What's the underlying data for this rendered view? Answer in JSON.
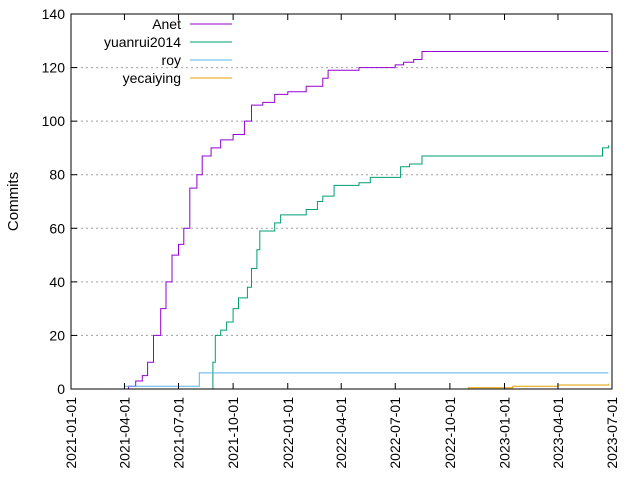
{
  "chart_data": {
    "type": "line",
    "xlabel": "",
    "ylabel": "Commits",
    "ylim": [
      0,
      140
    ],
    "xlim": [
      "2021-01-01",
      "2023-07-01"
    ],
    "y_ticks": [
      0,
      20,
      40,
      60,
      80,
      100,
      120,
      140
    ],
    "x_ticks": [
      "2021-01-01",
      "2021-04-01",
      "2021-07-01",
      "2021-10-01",
      "2022-01-01",
      "2022-04-01",
      "2022-07-01",
      "2022-10-01",
      "2023-01-01",
      "2023-04-01",
      "2023-07-01"
    ],
    "grid": "horizontal dotted",
    "legend_position": "top-left",
    "step": true,
    "series": [
      {
        "name": "Anet",
        "color": "#9400d3",
        "points": [
          [
            "2021-04-01",
            0
          ],
          [
            "2021-04-08",
            1
          ],
          [
            "2021-04-20",
            3
          ],
          [
            "2021-05-01",
            5
          ],
          [
            "2021-05-10",
            10
          ],
          [
            "2021-05-20",
            20
          ],
          [
            "2021-06-01",
            30
          ],
          [
            "2021-06-10",
            40
          ],
          [
            "2021-06-20",
            50
          ],
          [
            "2021-07-01",
            54
          ],
          [
            "2021-07-10",
            60
          ],
          [
            "2021-07-20",
            75
          ],
          [
            "2021-08-01",
            80
          ],
          [
            "2021-08-10",
            87
          ],
          [
            "2021-08-25",
            90
          ],
          [
            "2021-09-10",
            93
          ],
          [
            "2021-10-01",
            95
          ],
          [
            "2021-10-20",
            100
          ],
          [
            "2021-11-01",
            106
          ],
          [
            "2021-11-20",
            107
          ],
          [
            "2021-12-10",
            110
          ],
          [
            "2022-01-01",
            111
          ],
          [
            "2022-02-01",
            113
          ],
          [
            "2022-03-01",
            116
          ],
          [
            "2022-03-10",
            119
          ],
          [
            "2022-04-01",
            119
          ],
          [
            "2022-05-01",
            120
          ],
          [
            "2022-06-01",
            120
          ],
          [
            "2022-07-01",
            121
          ],
          [
            "2022-07-15",
            122
          ],
          [
            "2022-08-01",
            123
          ],
          [
            "2022-08-15",
            126
          ],
          [
            "2023-06-25",
            126
          ]
        ]
      },
      {
        "name": "yuanrui2014",
        "color": "#009e73",
        "points": [
          [
            "2021-08-20",
            0
          ],
          [
            "2021-08-28",
            10
          ],
          [
            "2021-09-01",
            20
          ],
          [
            "2021-09-10",
            22
          ],
          [
            "2021-09-20",
            25
          ],
          [
            "2021-10-01",
            30
          ],
          [
            "2021-10-10",
            34
          ],
          [
            "2021-10-25",
            38
          ],
          [
            "2021-11-01",
            45
          ],
          [
            "2021-11-10",
            52
          ],
          [
            "2021-11-15",
            59
          ],
          [
            "2021-12-10",
            62
          ],
          [
            "2021-12-20",
            65
          ],
          [
            "2022-01-10",
            65
          ],
          [
            "2022-02-01",
            67
          ],
          [
            "2022-02-20",
            70
          ],
          [
            "2022-03-01",
            72
          ],
          [
            "2022-03-20",
            76
          ],
          [
            "2022-04-15",
            76
          ],
          [
            "2022-05-01",
            77
          ],
          [
            "2022-05-20",
            79
          ],
          [
            "2022-07-01",
            79
          ],
          [
            "2022-07-10",
            83
          ],
          [
            "2022-07-25",
            84
          ],
          [
            "2022-08-15",
            87
          ],
          [
            "2023-06-10",
            87
          ],
          [
            "2023-06-15",
            90
          ],
          [
            "2023-06-25",
            91
          ]
        ]
      },
      {
        "name": "roy",
        "color": "#56b4e9",
        "points": [
          [
            "2021-04-01",
            1
          ],
          [
            "2021-08-01",
            1
          ],
          [
            "2021-08-05",
            6
          ],
          [
            "2023-06-25",
            6
          ]
        ]
      },
      {
        "name": "yecaiying",
        "color": "#e69f00",
        "points": [
          [
            "2022-10-01",
            0
          ],
          [
            "2022-11-01",
            0.5
          ],
          [
            "2023-01-15",
            1
          ],
          [
            "2023-04-01",
            1.5
          ],
          [
            "2023-06-25",
            2
          ]
        ]
      }
    ]
  }
}
